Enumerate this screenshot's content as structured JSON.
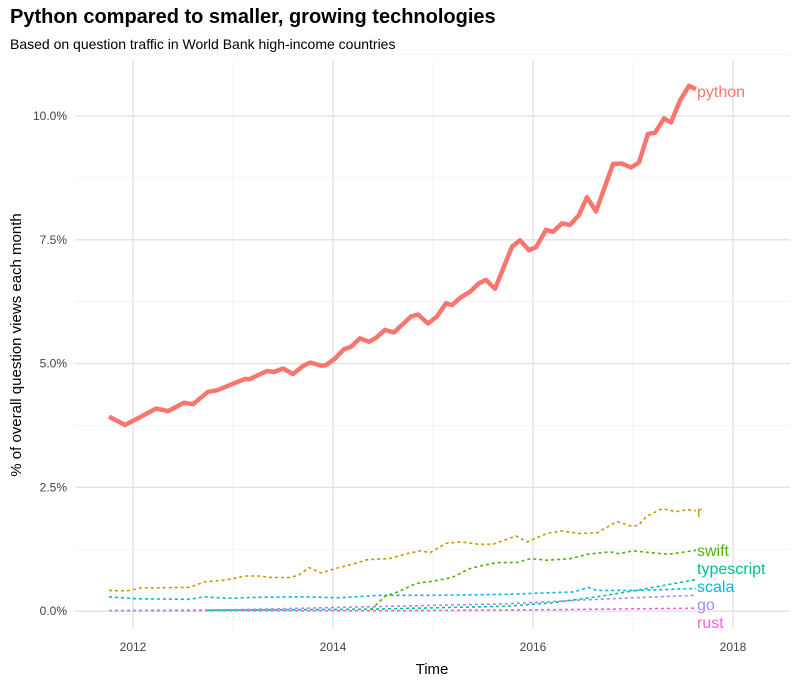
{
  "chart_data": {
    "type": "line",
    "title": "Python compared to smaller, growing technologies",
    "subtitle": "Based on question traffic in World Bank high-income countries",
    "xlabel": "Time",
    "ylabel": "% of overall question views each month",
    "xlim": [
      2011.42,
      2018.57
    ],
    "ylim": [
      -0.38,
      11.13
    ],
    "x_ticks": [
      "2012",
      "2014",
      "2016",
      "2018"
    ],
    "y_ticks": [
      "0.0%",
      "2.5%",
      "5.0%",
      "7.5%",
      "10.0%"
    ],
    "grid": true,
    "legend": "direct labels at line ends",
    "series": [
      {
        "name": "python",
        "color": "#F8766D",
        "style": "solid",
        "x": [
          2011.76,
          2011.92,
          2012.08,
          2012.23,
          2012.35,
          2012.51,
          2012.6,
          2012.75,
          2012.84,
          2013.12,
          2013.16,
          2013.34,
          2013.41,
          2013.5,
          2013.6,
          2013.7,
          2013.77,
          2013.88,
          2013.93,
          2014.02,
          2014.11,
          2014.18,
          2014.27,
          2014.36,
          2014.43,
          2014.52,
          2014.61,
          2014.78,
          2014.85,
          2014.95,
          2015.04,
          2015.13,
          2015.19,
          2015.28,
          2015.37,
          2015.46,
          2015.53,
          2015.62,
          2015.79,
          2015.87,
          2015.96,
          2016.03,
          2016.13,
          2016.2,
          2016.29,
          2016.37,
          2016.46,
          2016.54,
          2016.63,
          2016.8,
          2016.89,
          2016.98,
          2017.06,
          2017.15,
          2017.22,
          2017.31,
          2017.38,
          2017.47,
          2017.56,
          2017.63
        ],
        "y": [
          3.93,
          3.76,
          3.93,
          4.09,
          4.04,
          4.21,
          4.18,
          4.43,
          4.46,
          4.69,
          4.68,
          4.85,
          4.83,
          4.9,
          4.79,
          4.95,
          5.02,
          4.96,
          4.97,
          5.1,
          5.29,
          5.34,
          5.51,
          5.44,
          5.52,
          5.68,
          5.63,
          5.95,
          5.99,
          5.81,
          5.95,
          6.22,
          6.18,
          6.34,
          6.45,
          6.62,
          6.69,
          6.51,
          7.36,
          7.49,
          7.29,
          7.35,
          7.7,
          7.66,
          7.83,
          7.8,
          8.0,
          8.36,
          8.07,
          9.03,
          9.04,
          8.96,
          9.06,
          9.64,
          9.66,
          9.95,
          9.87,
          10.31,
          10.61,
          10.54
        ]
      },
      {
        "name": "r",
        "color": "#C49A00",
        "style": "dashed",
        "x": [
          2011.76,
          2011.94,
          2012.08,
          2012.57,
          2012.71,
          2012.93,
          2013.12,
          2013.25,
          2013.39,
          2013.57,
          2013.66,
          2013.76,
          2013.88,
          2014.02,
          2014.2,
          2014.34,
          2014.56,
          2014.74,
          2014.88,
          2014.97,
          2015.13,
          2015.28,
          2015.46,
          2015.6,
          2015.83,
          2015.94,
          2016.14,
          2016.28,
          2016.46,
          2016.64,
          2016.84,
          2016.98,
          2017.05,
          2017.14,
          2017.29,
          2017.43,
          2017.54,
          2017.63
        ],
        "y": [
          0.42,
          0.41,
          0.47,
          0.48,
          0.59,
          0.63,
          0.71,
          0.71,
          0.68,
          0.68,
          0.73,
          0.88,
          0.77,
          0.86,
          0.95,
          1.04,
          1.06,
          1.16,
          1.22,
          1.18,
          1.37,
          1.4,
          1.35,
          1.35,
          1.52,
          1.4,
          1.57,
          1.62,
          1.57,
          1.58,
          1.81,
          1.72,
          1.73,
          1.92,
          2.07,
          2.01,
          2.05,
          2.03
        ]
      },
      {
        "name": "swift",
        "color": "#53B400",
        "style": "dashed",
        "x": [
          2014.38,
          2014.52,
          2014.65,
          2014.83,
          2015.01,
          2015.19,
          2015.37,
          2015.51,
          2015.64,
          2015.83,
          2015.98,
          2016.14,
          2016.37,
          2016.55,
          2016.77,
          2016.86,
          2017.0,
          2017.18,
          2017.36,
          2017.63
        ],
        "y": [
          0.03,
          0.3,
          0.39,
          0.56,
          0.61,
          0.68,
          0.86,
          0.93,
          0.98,
          0.98,
          1.06,
          1.03,
          1.06,
          1.15,
          1.2,
          1.16,
          1.22,
          1.18,
          1.15,
          1.23
        ]
      },
      {
        "name": "typescript",
        "color": "#00C094",
        "style": "dashed",
        "x": [
          2012.75,
          2014.38,
          2015.74,
          2016.19,
          2016.64,
          2017.09,
          2017.63
        ],
        "y": [
          0.02,
          0.04,
          0.1,
          0.17,
          0.29,
          0.44,
          0.64
        ]
      },
      {
        "name": "scala",
        "color": "#00B6EB",
        "style": "dashed",
        "x": [
          2011.76,
          2012.03,
          2012.57,
          2012.71,
          2012.93,
          2013.25,
          2013.7,
          2014.06,
          2014.47,
          2015.06,
          2015.74,
          2016.41,
          2016.55,
          2016.64,
          2017.09,
          2017.63
        ],
        "y": [
          0.29,
          0.25,
          0.24,
          0.29,
          0.26,
          0.28,
          0.29,
          0.27,
          0.32,
          0.32,
          0.34,
          0.39,
          0.48,
          0.42,
          0.42,
          0.46
        ]
      },
      {
        "name": "go",
        "color": "#A58AFF",
        "style": "dashed",
        "x": [
          2011.76,
          2013.03,
          2014.38,
          2015.74,
          2016.64,
          2017.63
        ],
        "y": [
          0.01,
          0.03,
          0.09,
          0.15,
          0.24,
          0.32
        ]
      },
      {
        "name": "rust",
        "color": "#FB61D7",
        "style": "dashed",
        "x": [
          2011.76,
          2014.38,
          2016.19,
          2017.63
        ],
        "y": [
          0.01,
          0.01,
          0.03,
          0.06
        ]
      }
    ]
  }
}
